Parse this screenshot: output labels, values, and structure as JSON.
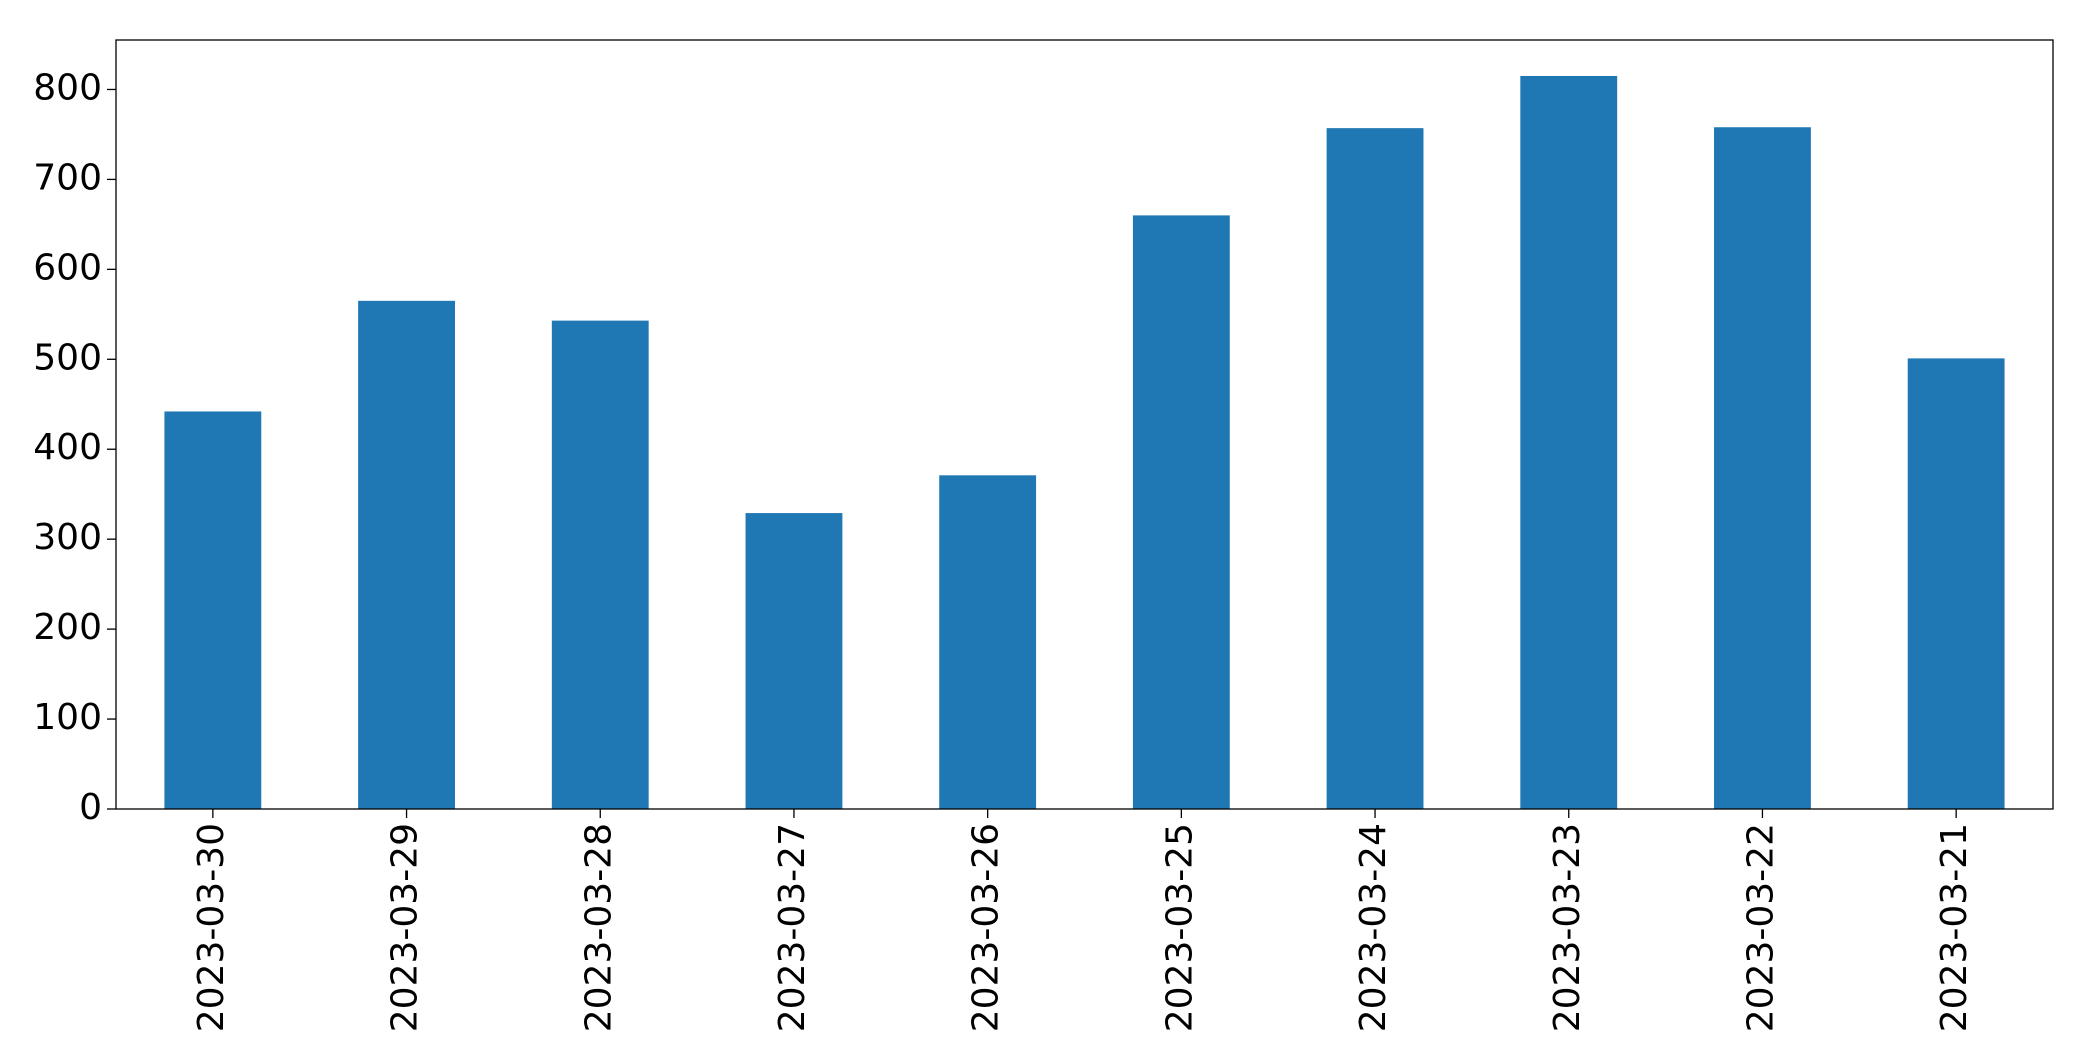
{
  "chart_data": {
    "type": "bar",
    "categories": [
      "2023-03-30",
      "2023-03-29",
      "2023-03-28",
      "2023-03-27",
      "2023-03-26",
      "2023-03-25",
      "2023-03-24",
      "2023-03-23",
      "2023-03-22",
      "2023-03-21"
    ],
    "values": [
      442,
      565,
      543,
      329,
      371,
      660,
      757,
      815,
      758,
      501
    ],
    "color": "#1f77b4",
    "ylim": [
      0,
      855
    ],
    "yticks": [
      0,
      100,
      200,
      300,
      400,
      500,
      600,
      700,
      800
    ],
    "grid": false
  }
}
